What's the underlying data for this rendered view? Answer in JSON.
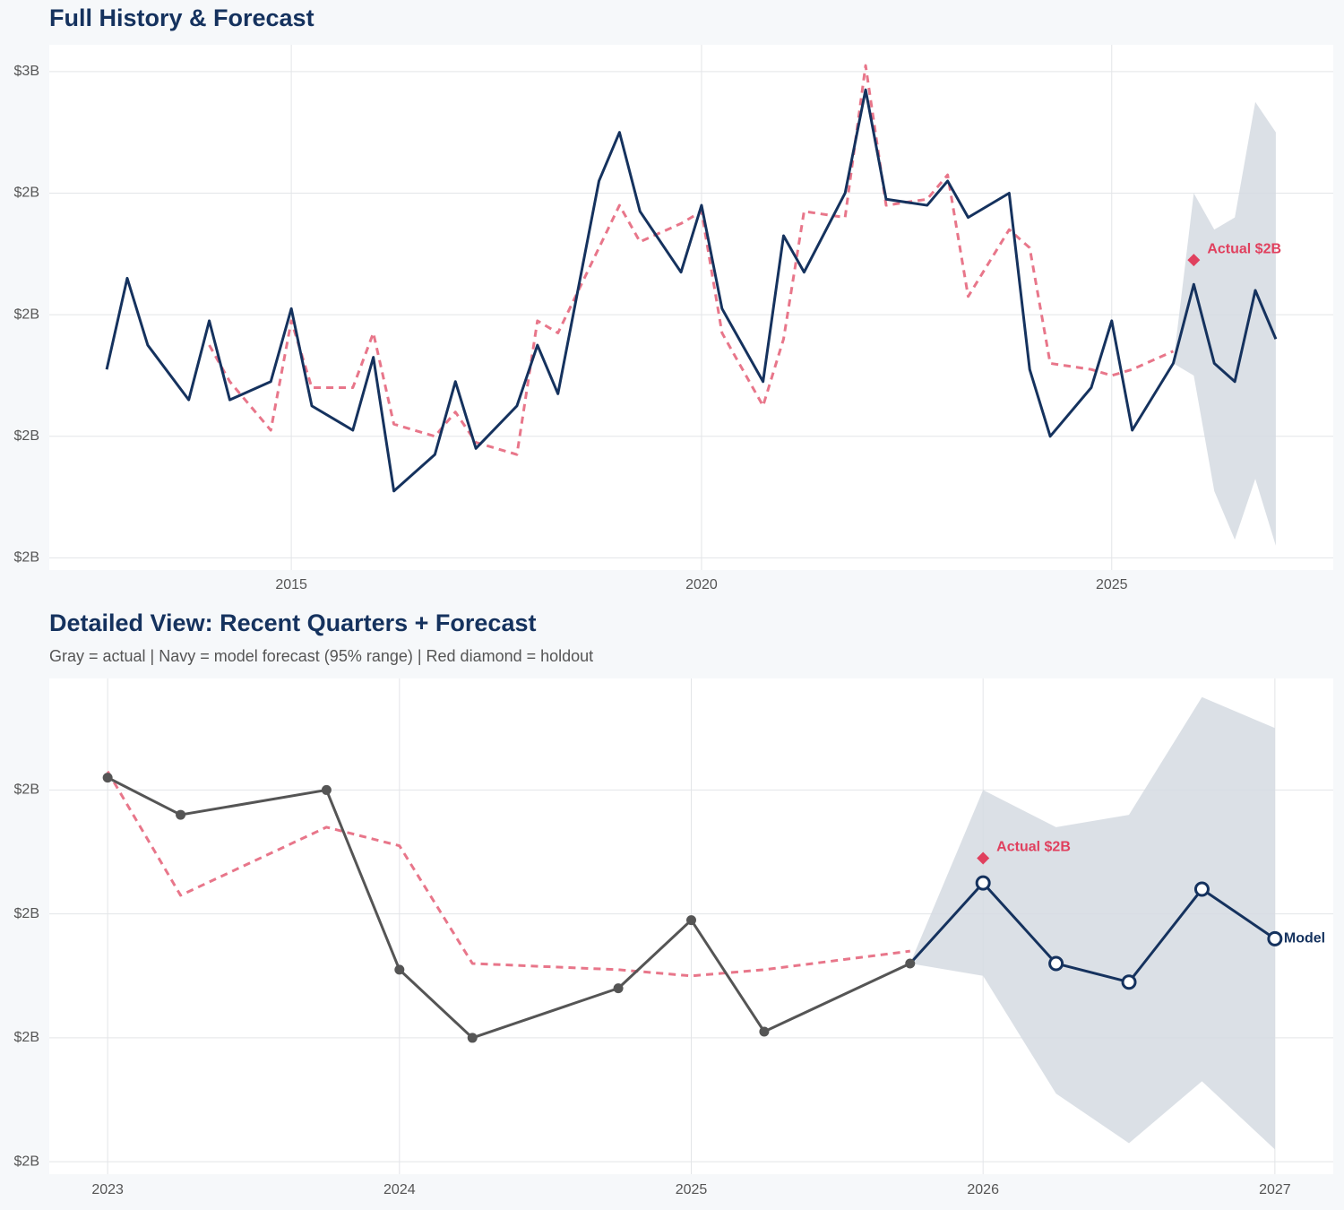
{
  "chart_data": [
    {
      "type": "line",
      "title": "Full History & Forecast",
      "x": [
        2012.75,
        2013,
        2013.25,
        2013.75,
        2014,
        2014.25,
        2014.75,
        2015,
        2015.25,
        2015.75,
        2016,
        2016.25,
        2016.75,
        2017,
        2017.25,
        2017.75,
        2018,
        2018.25,
        2018.75,
        2019,
        2019.25,
        2019.75,
        2020,
        2020.25,
        2020.75,
        2021,
        2021.25,
        2021.75,
        2022,
        2022.25,
        2022.75,
        2023,
        2023.25,
        2023.75,
        2024,
        2024.25,
        2024.75,
        2025,
        2025.25,
        2025.75,
        2026,
        2026.25,
        2026.5,
        2026.75,
        2027
      ],
      "series": [
        {
          "color": "#e8768a",
          "style": "dashed",
          "values": [
            null,
            null,
            null,
            null,
            2.15,
            2.09,
            2.01,
            2.19,
            2.08,
            2.08,
            2.17,
            2.02,
            2.0,
            2.04,
            1.99,
            1.97,
            2.19,
            2.17,
            2.31,
            2.38,
            2.32,
            2.35,
            2.37,
            2.17,
            2.05,
            2.16,
            2.37,
            2.36,
            2.61,
            2.38,
            2.39,
            2.43,
            2.23,
            2.34,
            2.31,
            2.12,
            2.11,
            2.1,
            2.11,
            2.14,
            null,
            null,
            null,
            null,
            null
          ]
        },
        {
          "color": "#15325e",
          "style": "solid",
          "values": [
            2.11,
            2.26,
            2.15,
            2.06,
            2.19,
            2.06,
            2.09,
            2.21,
            2.05,
            2.01,
            2.13,
            1.91,
            1.97,
            2.09,
            1.98,
            2.05,
            2.15,
            2.07,
            2.42,
            2.5,
            2.37,
            2.27,
            2.38,
            2.21,
            2.09,
            2.33,
            2.27,
            2.4,
            2.57,
            2.39,
            2.38,
            2.42,
            2.36,
            2.4,
            2.11,
            2.0,
            2.08,
            2.19,
            2.01,
            2.12,
            2.25,
            2.12,
            2.09,
            2.24,
            2.16
          ]
        }
      ],
      "band": {
        "color": "#d5dae2",
        "upper": [
          null,
          null,
          null,
          null,
          null,
          null,
          null,
          null,
          null,
          null,
          null,
          null,
          null,
          null,
          null,
          null,
          null,
          null,
          null,
          null,
          null,
          null,
          null,
          null,
          null,
          null,
          null,
          null,
          null,
          null,
          null,
          null,
          null,
          null,
          null,
          null,
          null,
          null,
          null,
          2.12,
          2.4,
          2.34,
          2.36,
          2.55,
          2.5
        ],
        "lower": [
          null,
          null,
          null,
          null,
          null,
          null,
          null,
          null,
          null,
          null,
          null,
          null,
          null,
          null,
          null,
          null,
          null,
          null,
          null,
          null,
          null,
          null,
          null,
          null,
          null,
          null,
          null,
          null,
          null,
          null,
          null,
          null,
          null,
          null,
          null,
          null,
          null,
          null,
          null,
          2.12,
          2.1,
          1.91,
          1.83,
          1.93,
          1.82
        ]
      },
      "annotations": [
        {
          "x": 2026,
          "value": 2.29,
          "label": "Actual $2B",
          "color": "#e0405e"
        }
      ],
      "xlim": [
        2012.05,
        2027.7
      ],
      "xticks": [
        2015,
        2020,
        2025
      ],
      "ylim": [
        1.78,
        2.644
      ],
      "yticks": [
        {
          "value": 1.8,
          "label": "$2B"
        },
        {
          "value": 2.0,
          "label": "$2B"
        },
        {
          "value": 2.2,
          "label": "$2B"
        },
        {
          "value": 2.4,
          "label": "$2B"
        },
        {
          "value": 2.6,
          "label": "$3B"
        }
      ],
      "grid": true
    },
    {
      "type": "line",
      "title": "Detailed View: Recent Quarters + Forecast",
      "subtitle": "Gray = actual  |  Navy = model forecast (95% range)  |  Red diamond = holdout",
      "x": [
        2023,
        2023.25,
        2023.75,
        2024,
        2024.25,
        2024.75,
        2025,
        2025.25,
        2025.75,
        2026,
        2026.25,
        2026.5,
        2026.75,
        2027
      ],
      "series": [
        {
          "color": "#e8768a",
          "style": "dashed",
          "values": [
            2.43,
            2.23,
            2.34,
            2.31,
            2.12,
            2.11,
            2.1,
            2.11,
            2.14,
            null,
            null,
            null,
            null,
            null
          ]
        },
        {
          "color": "#555555",
          "style": "solid",
          "marker": "filled",
          "values": [
            2.42,
            2.36,
            2.4,
            2.11,
            2.0,
            2.08,
            2.19,
            2.01,
            2.12,
            null,
            null,
            null,
            null,
            null
          ]
        },
        {
          "color": "#15325e",
          "style": "solid",
          "marker": "open",
          "end_label": "Model",
          "values": [
            null,
            null,
            null,
            null,
            null,
            null,
            null,
            null,
            2.12,
            2.25,
            2.12,
            2.09,
            2.24,
            2.16
          ]
        }
      ],
      "band": {
        "color": "#d5dae2",
        "upper": [
          null,
          null,
          null,
          null,
          null,
          null,
          null,
          null,
          2.12,
          2.4,
          2.34,
          2.36,
          2.55,
          2.5
        ],
        "lower": [
          null,
          null,
          null,
          null,
          null,
          null,
          null,
          null,
          2.12,
          2.1,
          1.91,
          1.83,
          1.93,
          1.82
        ]
      },
      "annotations": [
        {
          "x": 2026,
          "value": 2.29,
          "label": "Actual $2B",
          "color": "#e0405e"
        }
      ],
      "xlim": [
        2022.8,
        2027.2
      ],
      "xticks": [
        2023,
        2024,
        2025,
        2026,
        2027
      ],
      "ylim": [
        1.78,
        2.58
      ],
      "yticks": [
        {
          "value": 1.8,
          "label": "$2B"
        },
        {
          "value": 2.0,
          "label": "$2B"
        },
        {
          "value": 2.2,
          "label": "$2B"
        },
        {
          "value": 2.4,
          "label": "$2B"
        }
      ],
      "grid": true
    }
  ]
}
